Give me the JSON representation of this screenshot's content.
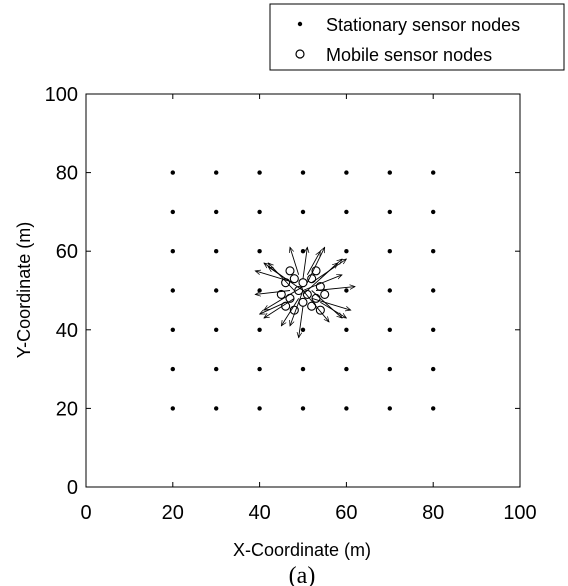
{
  "chart_data": {
    "type": "scatter",
    "title": "",
    "xlabel": "X-Coordinate (m)",
    "ylabel": "Y-Coordinate (m)",
    "xlim": [
      0,
      100
    ],
    "ylim": [
      0,
      100
    ],
    "xticks": [
      0,
      20,
      40,
      60,
      80,
      100
    ],
    "yticks": [
      0,
      20,
      40,
      60,
      80,
      100
    ],
    "grid": false,
    "legend_position": "top-right, outside axes",
    "caption": "(a)",
    "series": [
      {
        "name": "Stationary sensor nodes",
        "marker": "dot",
        "grid_x": [
          20,
          30,
          40,
          50,
          60,
          70,
          80
        ],
        "grid_y": [
          20,
          30,
          40,
          50,
          60,
          70,
          80
        ],
        "exclude": [
          [
            50,
            50
          ]
        ]
      },
      {
        "name": "Mobile sensor nodes",
        "marker": "circle",
        "points": [
          {
            "x": 46,
            "y": 52
          },
          {
            "x": 48,
            "y": 53
          },
          {
            "x": 50,
            "y": 52
          },
          {
            "x": 52,
            "y": 53
          },
          {
            "x": 54,
            "y": 51
          },
          {
            "x": 45,
            "y": 49
          },
          {
            "x": 47,
            "y": 48
          },
          {
            "x": 49,
            "y": 50
          },
          {
            "x": 51,
            "y": 49
          },
          {
            "x": 53,
            "y": 48
          },
          {
            "x": 55,
            "y": 49
          },
          {
            "x": 46,
            "y": 46
          },
          {
            "x": 48,
            "y": 45
          },
          {
            "x": 50,
            "y": 47
          },
          {
            "x": 52,
            "y": 46
          },
          {
            "x": 54,
            "y": 45
          },
          {
            "x": 47,
            "y": 55
          },
          {
            "x": 53,
            "y": 55
          }
        ],
        "vectors": [
          {
            "x": 50,
            "y": 50,
            "dx": -8,
            "dy": 6
          },
          {
            "x": 50,
            "y": 50,
            "dx": 9,
            "dy": 4
          },
          {
            "x": 50,
            "y": 50,
            "dx": -3,
            "dy": -9
          },
          {
            "x": 50,
            "y": 50,
            "dx": 6,
            "dy": -8
          },
          {
            "x": 48,
            "y": 52,
            "dx": -9,
            "dy": 3
          },
          {
            "x": 52,
            "y": 52,
            "dx": 8,
            "dy": 6
          },
          {
            "x": 48,
            "y": 48,
            "dx": -7,
            "dy": -5
          },
          {
            "x": 52,
            "y": 48,
            "dx": 9,
            "dy": -3
          },
          {
            "x": 49,
            "y": 54,
            "dx": -2,
            "dy": 7
          },
          {
            "x": 51,
            "y": 54,
            "dx": 3,
            "dy": 6
          },
          {
            "x": 47,
            "y": 50,
            "dx": -8,
            "dy": -1
          },
          {
            "x": 53,
            "y": 50,
            "dx": 9,
            "dy": 1
          },
          {
            "x": 50,
            "y": 46,
            "dx": -1,
            "dy": -8
          },
          {
            "x": 46,
            "y": 53,
            "dx": -5,
            "dy": 4
          },
          {
            "x": 54,
            "y": 53,
            "dx": 5,
            "dy": 5
          },
          {
            "x": 46,
            "y": 47,
            "dx": -6,
            "dy": -3
          },
          {
            "x": 54,
            "y": 47,
            "dx": 6,
            "dy": -4
          },
          {
            "x": 50,
            "y": 53,
            "dx": 1,
            "dy": 8
          },
          {
            "x": 48,
            "y": 50,
            "dx": -6,
            "dy": 7
          },
          {
            "x": 52,
            "y": 50,
            "dx": 7,
            "dy": -7
          },
          {
            "x": 50,
            "y": 51,
            "dx": -9,
            "dy": -6
          },
          {
            "x": 50,
            "y": 49,
            "dx": 8,
            "dy": 8
          },
          {
            "x": 51,
            "y": 52,
            "dx": 4,
            "dy": 9
          },
          {
            "x": 49,
            "y": 48,
            "dx": -4,
            "dy": -7
          }
        ]
      }
    ]
  }
}
